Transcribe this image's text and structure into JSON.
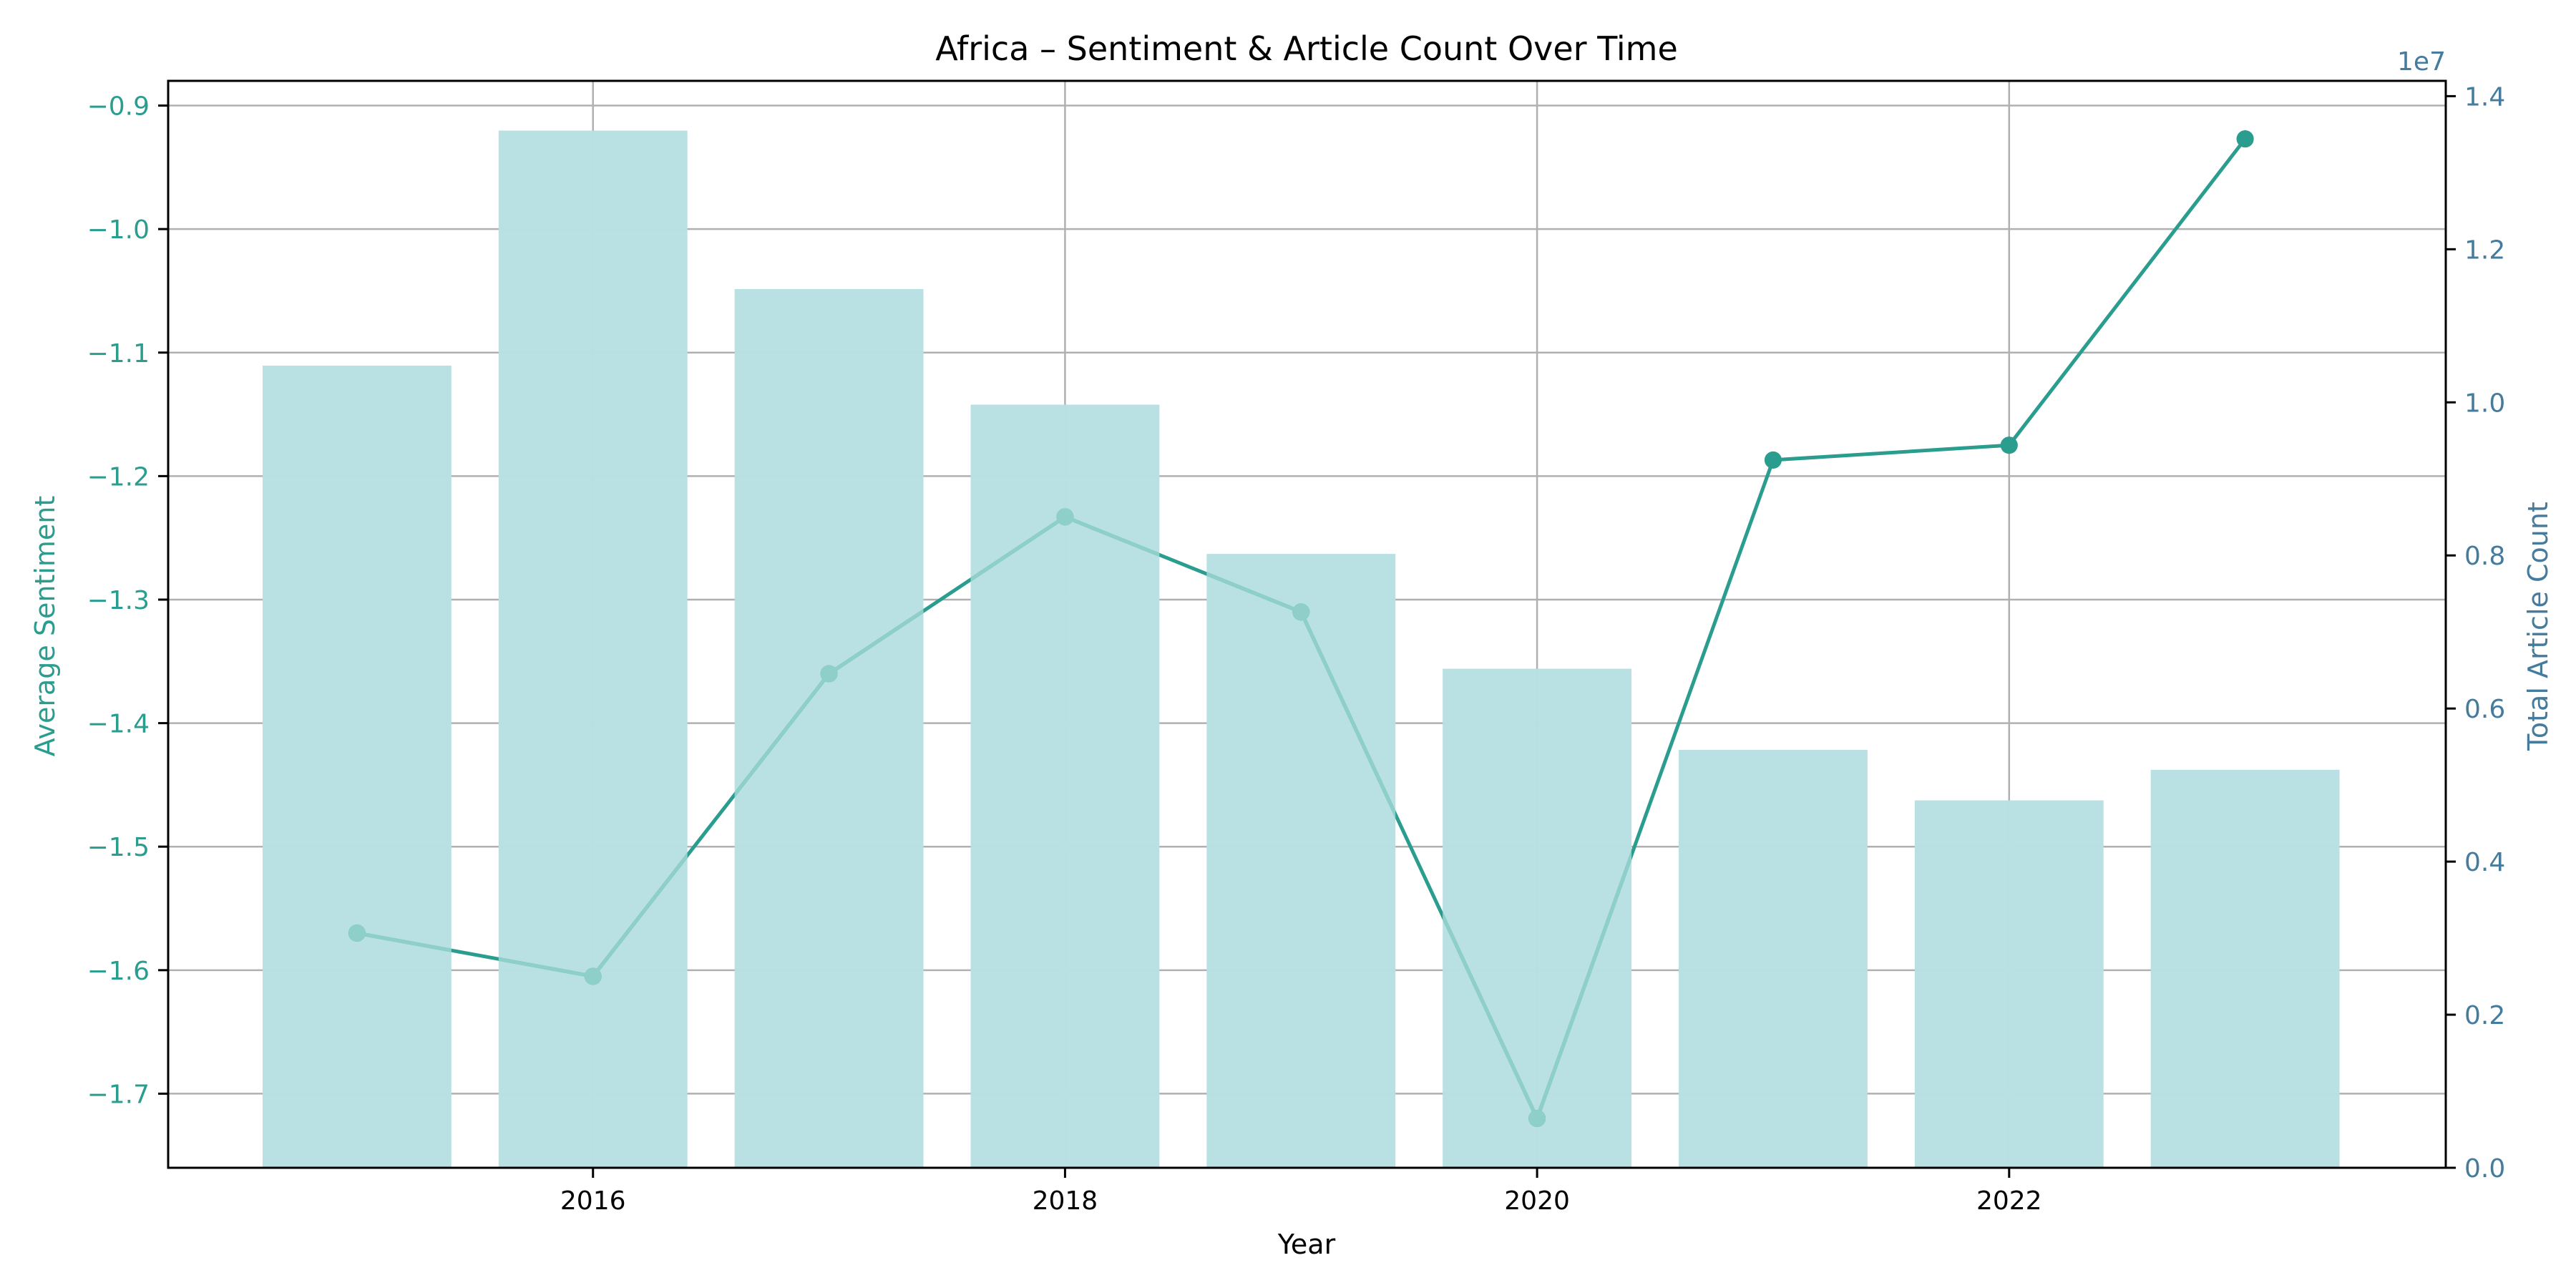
{
  "chart_data": {
    "type": "bar+line",
    "title": "Africa – Sentiment & Article Count Over Time",
    "xlabel": "Year",
    "ylabel_left": "Average Sentiment",
    "ylabel_right": "Total Article Count",
    "right_offset_label": "1e7",
    "x": [
      2015,
      2016,
      2017,
      2018,
      2019,
      2020,
      2021,
      2022,
      2023
    ],
    "xticks": [
      "2016",
      "2018",
      "2020",
      "2022"
    ],
    "xlim": [
      2014.2,
      2023.85
    ],
    "bars": {
      "name": "Total Article Count",
      "axis": "right",
      "values": [
        10480000,
        13550000,
        11480000,
        9970000,
        8020000,
        6520000,
        5460000,
        4800000,
        5200000
      ],
      "color": "#b8e0e3"
    },
    "line": {
      "name": "Average Sentiment",
      "axis": "left",
      "values": [
        -1.57,
        -1.605,
        -1.36,
        -1.233,
        -1.31,
        -1.72,
        -1.187,
        -1.175,
        -0.927
      ],
      "color": "#2a9d8f",
      "hidden_behind_bars_color": "#8ecfc9"
    },
    "ylim_left": [
      -1.76,
      -0.88
    ],
    "yticks_left": [
      "−0.9",
      "−1.0",
      "−1.1",
      "−1.2",
      "−1.3",
      "−1.4",
      "−1.5",
      "−1.6",
      "−1.7"
    ],
    "ytick_values_left": [
      -0.9,
      -1.0,
      -1.1,
      -1.2,
      -1.3,
      -1.4,
      -1.5,
      -1.6,
      -1.7
    ],
    "ylim_right": [
      0,
      14200000
    ],
    "yticks_right": [
      "0.0",
      "0.2",
      "0.4",
      "0.6",
      "0.8",
      "1.0",
      "1.2",
      "1.4"
    ],
    "ytick_values_right": [
      0,
      2000000,
      4000000,
      6000000,
      8000000,
      10000000,
      12000000,
      14000000
    ],
    "grid": true,
    "colors": {
      "left_axis": "#2a9d8f",
      "right_axis": "#457b9d",
      "grid": "#b0b0b0"
    }
  }
}
